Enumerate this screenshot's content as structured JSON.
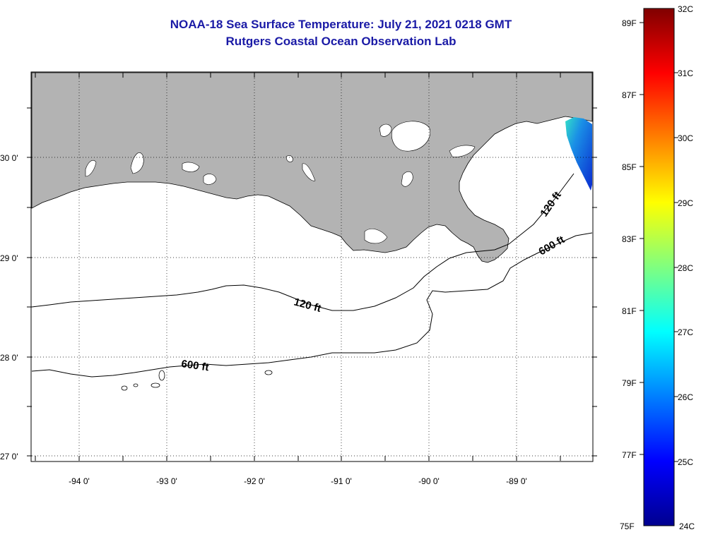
{
  "title": "NOAA-18 Sea Surface Temperature:  July 21, 2021 0218 GMT",
  "subtitle": "Rutgers Coastal Ocean Observation Lab",
  "map": {
    "lat_labels": [
      "30 0'",
      "29 0'",
      "28 0'",
      "27 0'"
    ],
    "lon_labels": [
      "-94 0'",
      "-93 0'",
      "-92 0'",
      "-91 0'",
      "-90 0'",
      "-89 0'"
    ],
    "land_color": "#b3b3b3",
    "contours": [
      {
        "label": "120 ft"
      },
      {
        "label": "600 ft"
      }
    ],
    "contour_labels_text": [
      "120 ft",
      "600 ft",
      "120 ft",
      "600 ft"
    ]
  },
  "colorbar": {
    "f_labels": [
      "89F",
      "87F",
      "85F",
      "83F",
      "81F",
      "79F",
      "77F",
      "75F"
    ],
    "c_labels": [
      "32C",
      "31C",
      "30C",
      "29C",
      "28C",
      "27C",
      "26C",
      "25C",
      "24C"
    ],
    "range_c": [
      24,
      32
    ],
    "range_f": [
      75,
      89
    ]
  }
}
